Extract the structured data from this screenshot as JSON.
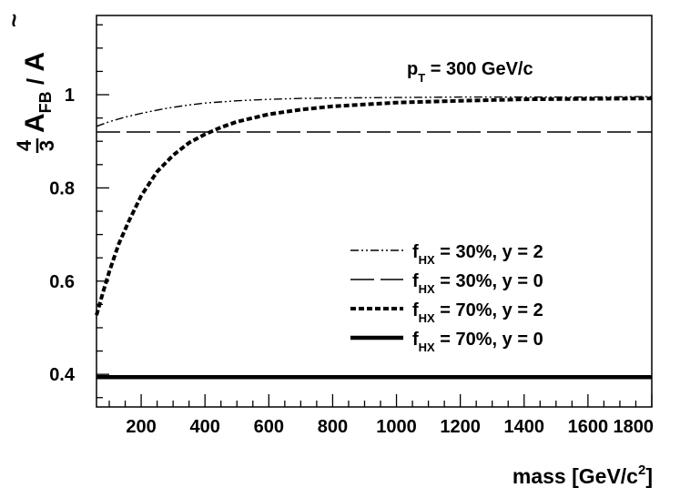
{
  "chart_data": {
    "type": "line",
    "title": "",
    "xlabel": {
      "text": "mass [GeV/c",
      "sup": "2",
      "tail": "]"
    },
    "ylabel": {
      "frac_num": "4",
      "frac_den": "3",
      "main": "A",
      "sub": "FB",
      "sep": " / ",
      "denom": "A",
      "denom_accent": "~"
    },
    "annotation": {
      "text": "p",
      "sub": "T",
      "tail": " = 300 GeV/c"
    },
    "xlim": [
      60,
      1800
    ],
    "ylim": [
      0.33,
      1.17
    ],
    "xticks": [
      200,
      400,
      600,
      800,
      1000,
      1200,
      1400,
      1600,
      1800
    ],
    "xtick_labels": [
      "200",
      "400",
      "600",
      "800",
      "1000",
      "1200",
      "1400",
      "1600",
      "1800"
    ],
    "yticks": [
      0.4,
      0.6,
      0.8,
      1.0
    ],
    "ytick_labels": [
      "0.4",
      "0.6",
      "0.8",
      "1"
    ],
    "legend_position": "center-right",
    "series": [
      {
        "name": "fHX = 30%, y = 2",
        "legend": {
          "f": "f",
          "sub": "HX",
          "text": " = 30%,  y = 2"
        },
        "style": "dash-dot",
        "x": [
          60,
          100,
          150,
          200,
          250,
          300,
          350,
          400,
          500,
          600,
          700,
          800,
          1000,
          1200,
          1400,
          1600,
          1800
        ],
        "y": [
          0.932,
          0.942,
          0.952,
          0.96,
          0.967,
          0.973,
          0.978,
          0.982,
          0.987,
          0.99,
          0.992,
          0.993,
          0.994,
          0.995,
          0.995,
          0.995,
          0.996
        ]
      },
      {
        "name": "fHX = 30%, y = 0",
        "legend": {
          "f": "f",
          "sub": "HX",
          "text": " = 30%,  y = 0"
        },
        "style": "long-dash",
        "x": [
          60,
          1800
        ],
        "y": [
          0.92,
          0.92
        ]
      },
      {
        "name": "fHX = 70%, y = 2",
        "legend": {
          "f": "f",
          "sub": "HX",
          "text": " = 70%,  y = 2"
        },
        "style": "dotted",
        "x": [
          60,
          80,
          100,
          130,
          160,
          200,
          250,
          300,
          350,
          400,
          450,
          500,
          600,
          700,
          800,
          1000,
          1200,
          1400,
          1600,
          1800
        ],
        "y": [
          0.527,
          0.575,
          0.62,
          0.68,
          0.727,
          0.783,
          0.835,
          0.87,
          0.897,
          0.915,
          0.93,
          0.942,
          0.958,
          0.968,
          0.975,
          0.983,
          0.987,
          0.99,
          0.991,
          0.992
        ]
      },
      {
        "name": "fHX = 70%, y = 0",
        "legend": {
          "f": "f",
          "sub": "HX",
          "text": " = 70%,  y = 0"
        },
        "style": "solid-thick",
        "x": [
          60,
          1800
        ],
        "y": [
          0.394,
          0.394
        ]
      }
    ]
  }
}
